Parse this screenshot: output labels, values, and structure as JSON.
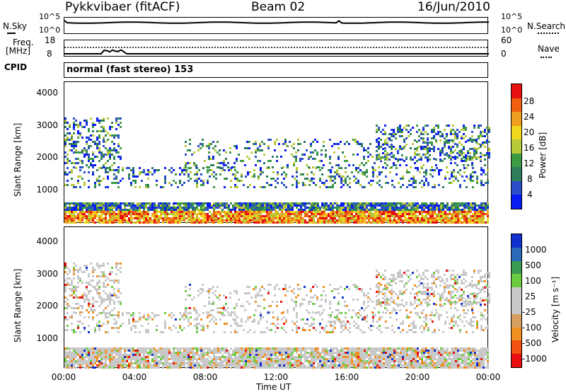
{
  "header": {
    "radar": "Pykkvibaer (fitACF)",
    "beam": "Beam 02",
    "date": "16/Jun/2010"
  },
  "noise_panel": {
    "left_label": "N.Sky",
    "right_label": "N.Search",
    "left_ticks": [
      "10^5",
      "10^0"
    ],
    "right_ticks": [
      "10^5",
      "10^0"
    ]
  },
  "freq_panel": {
    "left_label_line1": "Freq.",
    "left_label_line2": "[MHz]",
    "right_label": "Nave",
    "left_ticks": [
      "18",
      "8"
    ],
    "right_ticks": [
      "60",
      "0"
    ]
  },
  "cpid": {
    "label": "CPID",
    "value": "normal (fast stereo) 153"
  },
  "colors": {
    "power": [
      "#0a1cf0",
      "#2a4fc8",
      "#2e7e5b",
      "#3d9a45",
      "#b8c93a",
      "#f0d820",
      "#f0a020",
      "#f06010",
      "#e81010"
    ],
    "velocity": [
      "#e81010",
      "#f05010",
      "#f09020",
      "#d8a060",
      "#c8c8c8",
      "#c8c8c8",
      "#6acc40",
      "#3a9a50",
      "#2a6ab8",
      "#1030d0"
    ]
  },
  "chart_data": [
    {
      "type": "heatmap",
      "name": "power",
      "ylabel": "Slant Range [km]",
      "yticks": [
        "1000",
        "2000",
        "3000",
        "4000"
      ],
      "ylim": [
        180,
        4560
      ],
      "xlim": [
        0,
        24
      ],
      "colorbar_label": "Power [dB]",
      "colorbar_ticks": [
        "4",
        "8",
        "12",
        "16",
        "20",
        "24",
        "28"
      ],
      "colorbar_range": [
        0,
        32
      ]
    },
    {
      "type": "heatmap",
      "name": "velocity",
      "ylabel": "Slant Range [km]",
      "yticks": [
        "1000",
        "2000",
        "3000",
        "4000"
      ],
      "ylim": [
        180,
        4560
      ],
      "xlim": [
        0,
        24
      ],
      "xlabel": "Time UT",
      "xticks": [
        "00:00",
        "04:00",
        "08:00",
        "12:00",
        "16:00",
        "20:00",
        "00:00"
      ],
      "colorbar_label": "Velocity [m s⁻¹]",
      "colorbar_ticks": [
        "1000",
        "500",
        "100",
        "25",
        "-25",
        "-100",
        "-500",
        "-1000"
      ]
    }
  ]
}
